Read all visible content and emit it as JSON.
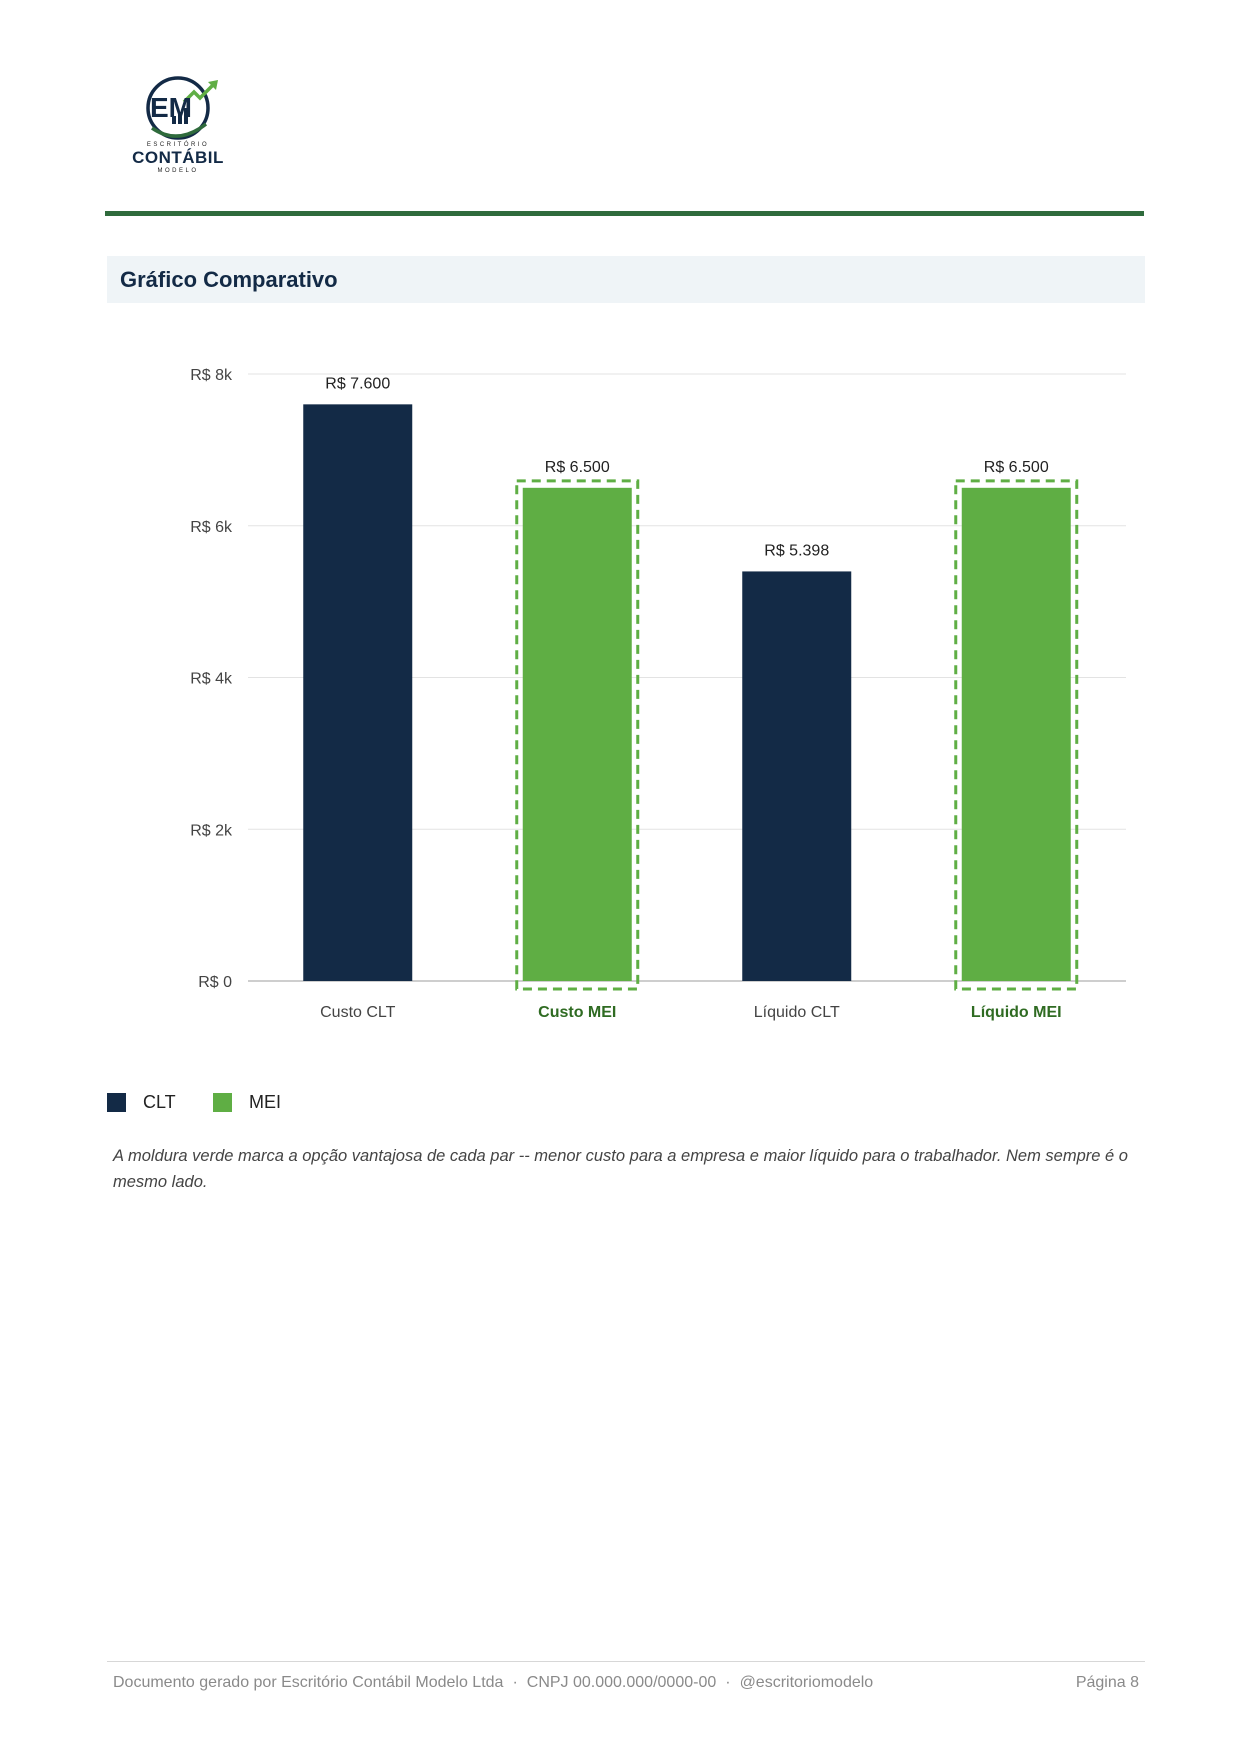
{
  "header": {
    "logo_top": "ESCRITÓRIO",
    "logo_main": "CONTÁBIL",
    "logo_sub": "MODELO",
    "logo_letters": "EM"
  },
  "section": {
    "title": "Gráfico Comparativo"
  },
  "chart_data": {
    "type": "bar",
    "categories": [
      "Custo CLT",
      "Custo MEI",
      "Líquido CLT",
      "Líquido MEI"
    ],
    "values": [
      7600,
      6500,
      5398,
      6500
    ],
    "value_labels": [
      "R$ 7.600",
      "R$ 6.500",
      "R$ 5.398",
      "R$ 6.500"
    ],
    "series_of_bar": [
      "CLT",
      "MEI",
      "CLT",
      "MEI"
    ],
    "highlighted": [
      false,
      true,
      false,
      true
    ],
    "ylim": [
      0,
      8000
    ],
    "yticks": [
      0,
      2000,
      4000,
      6000,
      8000
    ],
    "ytick_labels": [
      "R$ 0",
      "R$ 2k",
      "R$ 4k",
      "R$ 6k",
      "R$ 8k"
    ],
    "grid": true,
    "colors": {
      "CLT": "#132a46",
      "MEI": "#5fae44",
      "highlight": "#5fae44",
      "highlight_label": "#2f6b22"
    }
  },
  "legend": {
    "items": [
      {
        "label": "CLT",
        "color": "#132a46"
      },
      {
        "label": "MEI",
        "color": "#5fae44"
      }
    ]
  },
  "note": "A moldura verde marca a opção vantajosa de cada par -- menor custo para a empresa e maior líquido para o trabalhador. Nem sempre é o mesmo lado.",
  "footer": {
    "company": "Documento gerado por Escritório Contábil Modelo Ltda",
    "cnpj": "CNPJ 00.000.000/0000-00",
    "handle": "@escritoriomodelo",
    "sep": "·",
    "page": "Página 8"
  }
}
